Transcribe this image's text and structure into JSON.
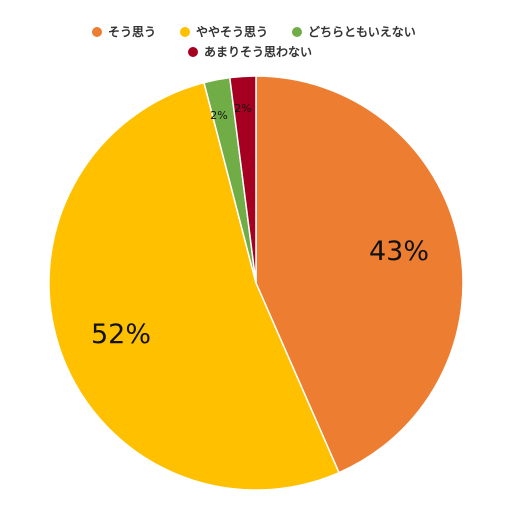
{
  "chart_data": {
    "type": "pie",
    "title": "",
    "legend_position": "top",
    "series": [
      {
        "name": "そう思う",
        "value": 43,
        "label": "43%",
        "color": "#ED7D31"
      },
      {
        "name": "ややそう思う",
        "value": 52,
        "label": "52%",
        "color": "#FFC000"
      },
      {
        "name": "どちらともいえない",
        "value": 2,
        "label": "2%",
        "color": "#70AD47"
      },
      {
        "name": "あまりそう思わない",
        "value": 2,
        "label": "2%",
        "color": "#A50021"
      }
    ]
  }
}
